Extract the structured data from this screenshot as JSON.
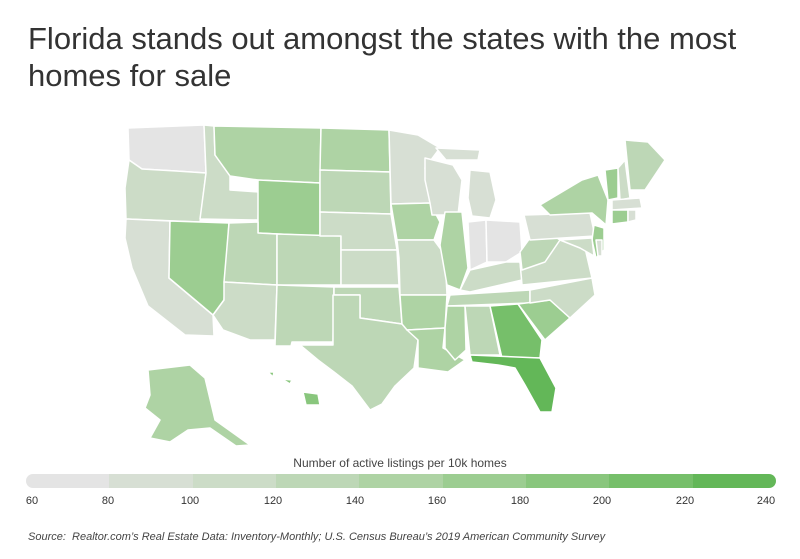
{
  "title": "Florida stands out amongst the states with the most homes for sale",
  "legend": {
    "title": "Number of active listings per 10k homes",
    "ticks": [
      "60",
      "80",
      "100",
      "120",
      "140",
      "160",
      "180",
      "200",
      "220",
      "240"
    ],
    "colors": [
      "#e4e4e4",
      "#d7dfd4",
      "#ccdcc7",
      "#bdd7b6",
      "#aed3a4",
      "#9ccd91",
      "#89c67d",
      "#76bf6a",
      "#63b758",
      "#52af48"
    ]
  },
  "source": {
    "label": "Source:",
    "text": "Realtor.com’s Real Estate Data: Inventory-Monthly; U.S. Census Bureau’s 2019 American Community Survey"
  },
  "chart_data": {
    "type": "heatmap",
    "subject": "US states choropleth",
    "scale": {
      "min": 60,
      "max": 240
    },
    "states": {
      "Washington": 70,
      "Oregon": 105,
      "California": 95,
      "Nevada": 170,
      "Idaho": 110,
      "Montana": 150,
      "Wyoming": 160,
      "Utah": 120,
      "Arizona": 100,
      "Colorado": 130,
      "New Mexico": 130,
      "North Dakota": 150,
      "South Dakota": 130,
      "Nebraska": 105,
      "Kansas": 105,
      "Oklahoma": 120,
      "Texas": 130,
      "Minnesota": 90,
      "Iowa": 140,
      "Missouri": 110,
      "Arkansas": 150,
      "Louisiana": 140,
      "Wisconsin": 95,
      "Illinois": 140,
      "Michigan": 95,
      "Indiana": 70,
      "Ohio": 70,
      "Kentucky": 110,
      "Tennessee": 120,
      "Mississippi": 140,
      "Alabama": 130,
      "Georgia": 200,
      "Florida": 230,
      "South Carolina": 160,
      "North Carolina": 110,
      "Virginia": 115,
      "West Virginia": 130,
      "Pennsylvania": 90,
      "New York": 150,
      "New Jersey": 165,
      "Vermont": 165,
      "New Hampshire": 100,
      "Maine": 130,
      "Massachusetts": 95,
      "Connecticut": 165,
      "Rhode Island": 80,
      "Maryland": 100,
      "Delaware": 90,
      "Alaska": 140,
      "Hawaii": 190
    }
  }
}
